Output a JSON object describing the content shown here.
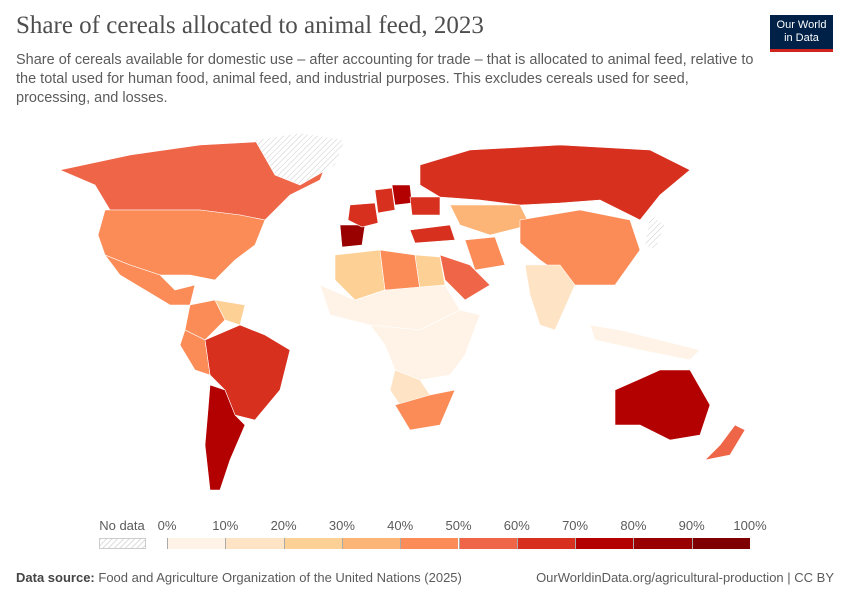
{
  "title": "Share of cereals allocated to animal feed, 2023",
  "subtitle": "Share of cereals available for domestic use – after accounting for trade – that is allocated to animal feed, relative to the total used for human food, animal feed, and industrial purposes. This excludes cereals used for seed, processing, and losses.",
  "logo": {
    "line1": "Our World",
    "line2": "in Data",
    "bg": "#002147",
    "accent": "#ce261e"
  },
  "footer": {
    "source_label": "Data source:",
    "source": "Food and Agriculture Organization of the United Nations (2025)",
    "url_license": "OurWorldinData.org/agricultural-production | CC BY"
  },
  "chart_data": {
    "type": "choropleth",
    "unit": "%",
    "legend": {
      "no_data_label": "No data",
      "ticks": [
        "0%",
        "10%",
        "20%",
        "30%",
        "40%",
        "50%",
        "60%",
        "70%",
        "80%",
        "90%",
        "100%"
      ],
      "colors": [
        "#fff3e8",
        "#fee3c4",
        "#fdd096",
        "#fdb477",
        "#fb8c58",
        "#ef6548",
        "#d7301f",
        "#b30000",
        "#990000",
        "#7f0000"
      ]
    },
    "countries": [
      {
        "name": "Canada",
        "value": 55
      },
      {
        "name": "United States",
        "value": 45
      },
      {
        "name": "Mexico",
        "value": 45
      },
      {
        "name": "Greenland",
        "value": null
      },
      {
        "name": "Brazil",
        "value": 65
      },
      {
        "name": "Argentina",
        "value": 72
      },
      {
        "name": "Colombia",
        "value": 45
      },
      {
        "name": "Peru",
        "value": 45
      },
      {
        "name": "Venezuela",
        "value": 25
      },
      {
        "name": "Spain",
        "value": 85
      },
      {
        "name": "France",
        "value": 62
      },
      {
        "name": "Germany",
        "value": 65
      },
      {
        "name": "Poland",
        "value": 75
      },
      {
        "name": "Ukraine",
        "value": 65
      },
      {
        "name": "Russia",
        "value": 65
      },
      {
        "name": "Kazakhstan",
        "value": 35
      },
      {
        "name": "Turkey",
        "value": 65
      },
      {
        "name": "Iran",
        "value": 45
      },
      {
        "name": "Saudi Arabia",
        "value": 55
      },
      {
        "name": "China",
        "value": 45
      },
      {
        "name": "India",
        "value": 10
      },
      {
        "name": "Algeria",
        "value": 25
      },
      {
        "name": "Libya",
        "value": 45
      },
      {
        "name": "Egypt",
        "value": 25
      },
      {
        "name": "Sahel",
        "value": 5
      },
      {
        "name": "Central Africa",
        "value": 5
      },
      {
        "name": "Angola",
        "value": 15
      },
      {
        "name": "South Africa",
        "value": 45
      },
      {
        "name": "Indonesia",
        "value": 5
      },
      {
        "name": "Australia",
        "value": 78
      },
      {
        "name": "New Zealand",
        "value": 55
      },
      {
        "name": "Japan",
        "value": null
      }
    ]
  }
}
